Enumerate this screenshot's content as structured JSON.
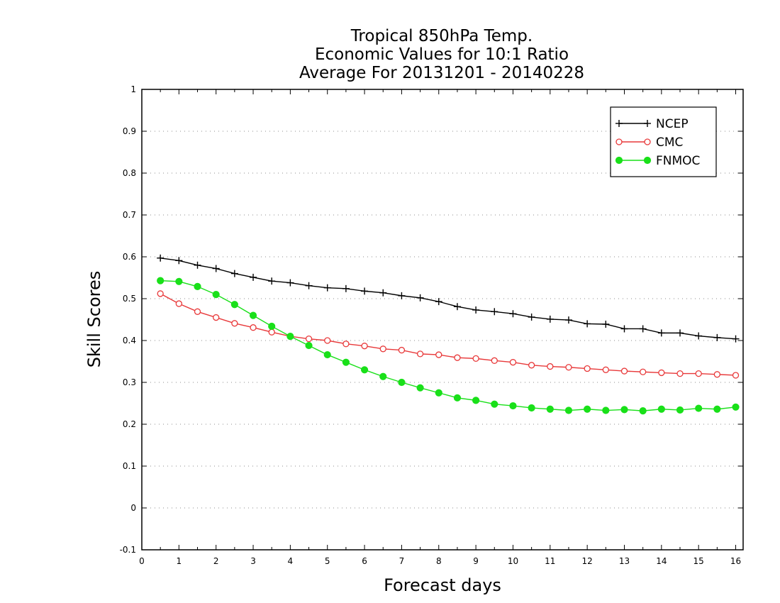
{
  "chart_data": {
    "type": "line",
    "title": [
      "Tropical 850hPa Temp.",
      "Economic Values for 10:1 Ratio",
      "Average For 20131201 - 20140228"
    ],
    "xlabel": "Forecast days",
    "ylabel": "Skill Scores",
    "xlim": [
      0,
      16.2
    ],
    "ylim": [
      -0.1,
      1
    ],
    "xticks": [
      0,
      1,
      2,
      3,
      4,
      5,
      6,
      7,
      8,
      9,
      10,
      11,
      12,
      13,
      14,
      15,
      16
    ],
    "yticks": [
      -0.1,
      0,
      0.1,
      0.2,
      0.3,
      0.4,
      0.5,
      0.6,
      0.7,
      0.8,
      0.9,
      1
    ],
    "ytick_labels": [
      "-0.1",
      "0",
      "0.1",
      "0.2",
      "0.3",
      "0.4",
      "0.5",
      "0.6",
      "0.7",
      "0.8",
      "0.9",
      "1"
    ],
    "grid": "horizontal dotted",
    "legend_position": "top-right",
    "x": [
      0.5,
      1.0,
      1.5,
      2.0,
      2.5,
      3.0,
      3.5,
      4.0,
      4.5,
      5.0,
      5.5,
      6.0,
      6.5,
      7.0,
      7.5,
      8.0,
      8.5,
      9.0,
      9.5,
      10.0,
      10.5,
      11.0,
      11.5,
      12.0,
      12.5,
      13.0,
      13.5,
      14.0,
      14.5,
      15.0,
      15.5,
      16.0
    ],
    "series": [
      {
        "name": "NCEP",
        "color": "#000000",
        "marker": "plus",
        "values": [
          0.597,
          0.591,
          0.58,
          0.572,
          0.56,
          0.551,
          0.542,
          0.538,
          0.531,
          0.526,
          0.524,
          0.518,
          0.514,
          0.507,
          0.502,
          0.493,
          0.481,
          0.473,
          0.469,
          0.464,
          0.456,
          0.451,
          0.449,
          0.44,
          0.439,
          0.428,
          0.428,
          0.418,
          0.418,
          0.411,
          0.407,
          0.404
        ]
      },
      {
        "name": "CMC",
        "color": "#e8393a",
        "marker": "open-circle",
        "values": [
          0.512,
          0.488,
          0.469,
          0.455,
          0.441,
          0.431,
          0.42,
          0.41,
          0.404,
          0.4,
          0.392,
          0.387,
          0.38,
          0.377,
          0.368,
          0.366,
          0.359,
          0.357,
          0.352,
          0.348,
          0.341,
          0.338,
          0.336,
          0.333,
          0.33,
          0.327,
          0.325,
          0.323,
          0.321,
          0.321,
          0.319,
          0.317
        ]
      },
      {
        "name": "FNMOC",
        "color": "#19e019",
        "marker": "filled-circle",
        "values": [
          0.543,
          0.541,
          0.529,
          0.51,
          0.486,
          0.46,
          0.434,
          0.41,
          0.388,
          0.366,
          0.348,
          0.33,
          0.314,
          0.3,
          0.287,
          0.275,
          0.263,
          0.257,
          0.248,
          0.244,
          0.239,
          0.236,
          0.233,
          0.236,
          0.233,
          0.235,
          0.232,
          0.236,
          0.234,
          0.238,
          0.236,
          0.241
        ]
      }
    ]
  }
}
